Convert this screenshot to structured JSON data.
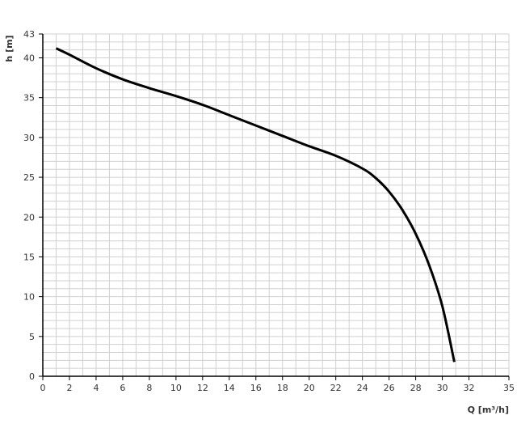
{
  "chart_data": {
    "type": "line",
    "title": "",
    "xlabel": "Q [m³/h]",
    "ylabel": "h [m]",
    "xlim": [
      0,
      35
    ],
    "ylim": [
      0,
      43
    ],
    "xticks": [
      0,
      2,
      4,
      6,
      8,
      10,
      12,
      14,
      16,
      18,
      20,
      22,
      24,
      26,
      28,
      30,
      32,
      35
    ],
    "yticks": [
      0,
      5,
      10,
      15,
      20,
      25,
      30,
      35,
      40,
      43
    ],
    "grid": true,
    "grid_minor_x_step": 1,
    "grid_minor_y_step": 1,
    "colors": {
      "line": "#000000",
      "grid": "#d0d0d0",
      "axis": "#000000"
    },
    "series": [
      {
        "x": [
          1,
          2,
          4,
          6,
          8,
          10,
          12,
          14,
          16,
          18,
          20,
          22,
          24,
          25,
          26,
          27,
          28,
          29,
          30,
          30.9
        ],
        "y": [
          41.2,
          40.4,
          38.7,
          37.3,
          36.2,
          35.2,
          34.1,
          32.8,
          31.5,
          30.2,
          28.9,
          27.7,
          26.1,
          24.9,
          23.2,
          20.9,
          17.9,
          14.0,
          8.8,
          1.8
        ]
      }
    ]
  }
}
